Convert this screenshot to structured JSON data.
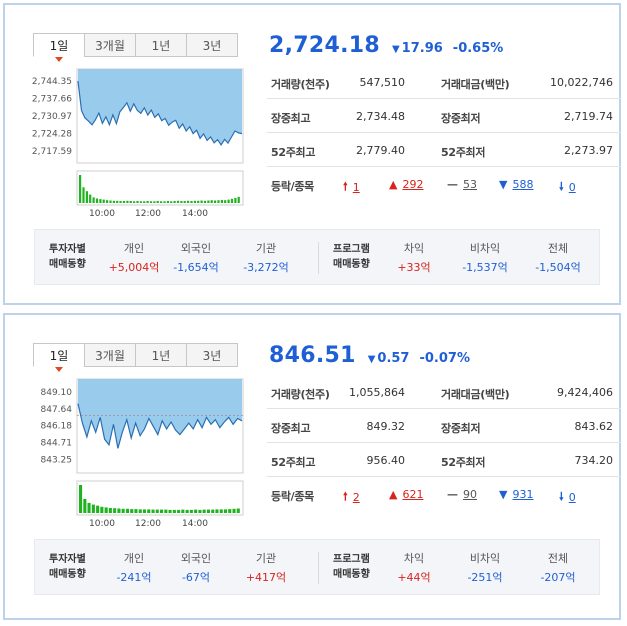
{
  "colors": {
    "up": "#d8231d",
    "down": "#1f5fd6",
    "area_fill": "#8ec6ea",
    "area_line": "#2a6fb3",
    "volume": "#1fb31f",
    "panel_border": "#bcd3ea"
  },
  "panels": [
    {
      "tabs": [
        {
          "label": "1일",
          "active": true
        },
        {
          "label": "3개월",
          "active": false
        },
        {
          "label": "1년",
          "active": false
        },
        {
          "label": "3년",
          "active": false
        }
      ],
      "price": "2,724.18",
      "change_icon": "down-triangle-icon",
      "change": "17.96",
      "change_pct": "-0.65%",
      "stats": [
        {
          "label1": "거래량(천주)",
          "value1": "547,510",
          "label2": "거래대금(백만)",
          "value2": "10,022,746"
        },
        {
          "label1": "장중최고",
          "value1": "2,734.48",
          "label2": "장중최저",
          "value2": "2,719.74"
        },
        {
          "label1": "52주최고",
          "value1": "2,779.40",
          "label2": "52주최저",
          "value2": "2,273.97"
        }
      ],
      "updown": {
        "label": "등락/종목",
        "upper_limit": "1",
        "up": "292",
        "unchanged": "53",
        "down": "588",
        "lower_limit": "0"
      },
      "investors": {
        "title_line1": "투자자별",
        "title_line2": "매매동향",
        "individual": {
          "label": "개인",
          "value": "+5,004억"
        },
        "foreign": {
          "label": "외국인",
          "value": "-1,654억"
        },
        "institution": {
          "label": "기관",
          "value": "-3,272억"
        },
        "program_line1": "프로그램",
        "program_line2": "매매동향",
        "arbitrage": {
          "label": "차익",
          "value": "+33억"
        },
        "non_arbitrage": {
          "label": "비차익",
          "value": "-1,537억"
        },
        "total": {
          "label": "전체",
          "value": "-1,504억"
        }
      },
      "chart_data": {
        "type": "area",
        "y_ticks": [
          "2,744.35",
          "2,737.66",
          "2,730.97",
          "2,724.28",
          "2,717.59"
        ],
        "ylim": [
          2714.5,
          2747.4
        ],
        "x_ticks": [
          "10:00",
          "12:00",
          "14:00"
        ],
        "series": [
          {
            "values": [
              2744.3,
              2733.0,
              2730.2,
              2729.0,
              2727.6,
              2729.5,
              2732.1,
              2728.1,
              2730.6,
              2727.6,
              2731.4,
              2728.0,
              2732.6,
              2734.2,
              2736.0,
              2732.8,
              2735.6,
              2733.1,
              2732.0,
              2734.1,
              2731.3,
              2733.2,
              2730.4,
              2731.8,
              2729.2,
              2730.0,
              2727.4,
              2728.6,
              2729.3,
              2726.3,
              2727.9,
              2725.2,
              2726.8,
              2724.2,
              2725.5,
              2722.4,
              2724.1,
              2721.6,
              2722.9,
              2720.7,
              2721.9,
              2719.9,
              2722.0,
              2720.6,
              2722.9,
              2725.2,
              2724.5,
              2724.2
            ]
          }
        ],
        "volume_values": [
          100,
          56,
          42,
          30,
          20,
          16,
          14,
          12,
          10,
          9,
          8,
          8,
          7,
          7,
          8,
          7,
          6,
          7,
          6,
          6,
          7,
          6,
          6,
          7,
          6,
          6,
          7,
          6,
          7,
          8,
          7,
          7,
          8,
          7,
          8,
          8,
          9,
          8,
          9,
          10,
          9,
          10,
          11,
          10,
          12,
          15,
          18,
          22
        ]
      }
    },
    {
      "tabs": [
        {
          "label": "1일",
          "active": true
        },
        {
          "label": "3개월",
          "active": false
        },
        {
          "label": "1년",
          "active": false
        },
        {
          "label": "3년",
          "active": false
        }
      ],
      "price": "846.51",
      "change_icon": "down-triangle-icon",
      "change": "0.57",
      "change_pct": "-0.07%",
      "stats": [
        {
          "label1": "거래량(천주)",
          "value1": "1,055,864",
          "label2": "거래대금(백만)",
          "value2": "9,424,406"
        },
        {
          "label1": "장중최고",
          "value1": "849.32",
          "label2": "장중최저",
          "value2": "843.62"
        },
        {
          "label1": "52주최고",
          "value1": "956.40",
          "label2": "52주최저",
          "value2": "734.20"
        }
      ],
      "updown": {
        "label": "등락/종목",
        "upper_limit": "2",
        "up": "621",
        "unchanged": "90",
        "down": "931",
        "lower_limit": "0"
      },
      "investors": {
        "title_line1": "투자자별",
        "title_line2": "매매동향",
        "individual": {
          "label": "개인",
          "value": "-241억"
        },
        "foreign": {
          "label": "외국인",
          "value": "-67억"
        },
        "institution": {
          "label": "기관",
          "value": "+417억"
        },
        "program_line1": "프로그램",
        "program_line2": "매매동향",
        "arbitrage": {
          "label": "차익",
          "value": "+44억"
        },
        "non_arbitrage": {
          "label": "비차익",
          "value": "-251억"
        },
        "total": {
          "label": "전체",
          "value": "-207억"
        }
      },
      "chart_data": {
        "type": "area",
        "y_ticks": [
          "849.10",
          "847.64",
          "846.18",
          "844.71",
          "843.25"
        ],
        "ylim": [
          842.4,
          849.9
        ],
        "x_ticks": [
          "10:00",
          "12:00",
          "14:00"
        ],
        "reference_value": 847.08,
        "series": [
          {
            "values": [
              848.1,
              846.4,
              845.2,
              846.6,
              845.6,
              846.9,
              845.0,
              844.5,
              846.3,
              844.2,
              845.6,
              846.7,
              845.1,
              846.4,
              845.3,
              845.9,
              846.8,
              846.1,
              845.4,
              846.6,
              845.9,
              846.5,
              845.8,
              845.4,
              845.9,
              846.4,
              845.9,
              846.7,
              846.0,
              846.9,
              846.3,
              846.7,
              846.0,
              846.5,
              846.9,
              846.3,
              846.8,
              846.6
            ]
          }
        ],
        "volume_values": [
          100,
          50,
          36,
          30,
          26,
          22,
          20,
          18,
          17,
          16,
          15,
          15,
          14,
          14,
          13,
          13,
          13,
          12,
          12,
          12,
          12,
          11,
          11,
          11,
          12,
          11,
          11,
          12,
          11,
          12,
          12,
          12,
          13,
          13,
          13,
          14,
          15,
          16
        ]
      }
    }
  ]
}
